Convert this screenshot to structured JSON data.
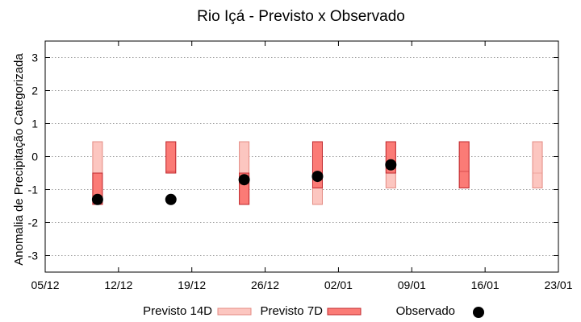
{
  "chart_data": {
    "type": "range-bar-scatter",
    "title": "Rio Içá - Previsto x Observado",
    "ylabel": "Anomalia de Precipitação Categorizada",
    "xlabel": "",
    "grid": "horizontal-dotted",
    "legend_position": "bottom",
    "colors": {
      "previsto_14d_fill": "#fcc6c0",
      "previsto_14d_stroke": "#e48a82",
      "previsto_7d_fill": "#fb7b76",
      "previsto_7d_stroke": "#c0282e",
      "observado": "#000000",
      "grid": "#9a9a9a"
    },
    "x_axis": {
      "ticks": [
        "05/12",
        "12/12",
        "19/12",
        "26/12",
        "02/01",
        "09/01",
        "16/01",
        "23/01"
      ],
      "tick_positions": [
        0,
        7,
        14,
        21,
        28,
        35,
        42,
        49
      ]
    },
    "y_axis": {
      "ticks": [
        "-3",
        "-2",
        "-1",
        "0",
        "1",
        "2",
        "3"
      ],
      "ylim": [
        -3.5,
        3.5
      ]
    },
    "series": [
      {
        "name": "Previsto 14D",
        "points": [
          {
            "x": 5,
            "low": -1.45,
            "high": 0.45,
            "mid": -0.5
          },
          {
            "x": 12,
            "low": -0.5,
            "high": 0.45,
            "mid": -0.45
          },
          {
            "x": 19,
            "low": -1.45,
            "high": 0.45,
            "mid": -0.5
          },
          {
            "x": 26,
            "low": -1.45,
            "high": 0.45,
            "mid": -0.95
          },
          {
            "x": 33,
            "low": -0.95,
            "high": 0.45,
            "mid": -0.5
          },
          {
            "x": 40,
            "low": -0.95,
            "high": 0.45,
            "mid": -0.5
          },
          {
            "x": 47,
            "low": -0.95,
            "high": 0.45,
            "mid": -0.5
          }
        ]
      },
      {
        "name": "Previsto 7D",
        "points": [
          {
            "x": 5,
            "low": -1.45,
            "high": -0.5
          },
          {
            "x": 12,
            "low": -0.5,
            "high": 0.45,
            "mid": -0.45
          },
          {
            "x": 19,
            "low": -1.45,
            "high": -0.5
          },
          {
            "x": 26,
            "low": -0.95,
            "high": 0.45
          },
          {
            "x": 33,
            "low": -0.5,
            "high": 0.45
          },
          {
            "x": 40,
            "low": -0.95,
            "high": 0.45,
            "mid": -0.45
          }
        ]
      },
      {
        "name": "Observado",
        "points": [
          {
            "x": 5,
            "y": -1.3
          },
          {
            "x": 12,
            "y": -1.3
          },
          {
            "x": 19,
            "y": -0.7
          },
          {
            "x": 26,
            "y": -0.6
          },
          {
            "x": 33,
            "y": -0.25
          }
        ]
      }
    ]
  }
}
